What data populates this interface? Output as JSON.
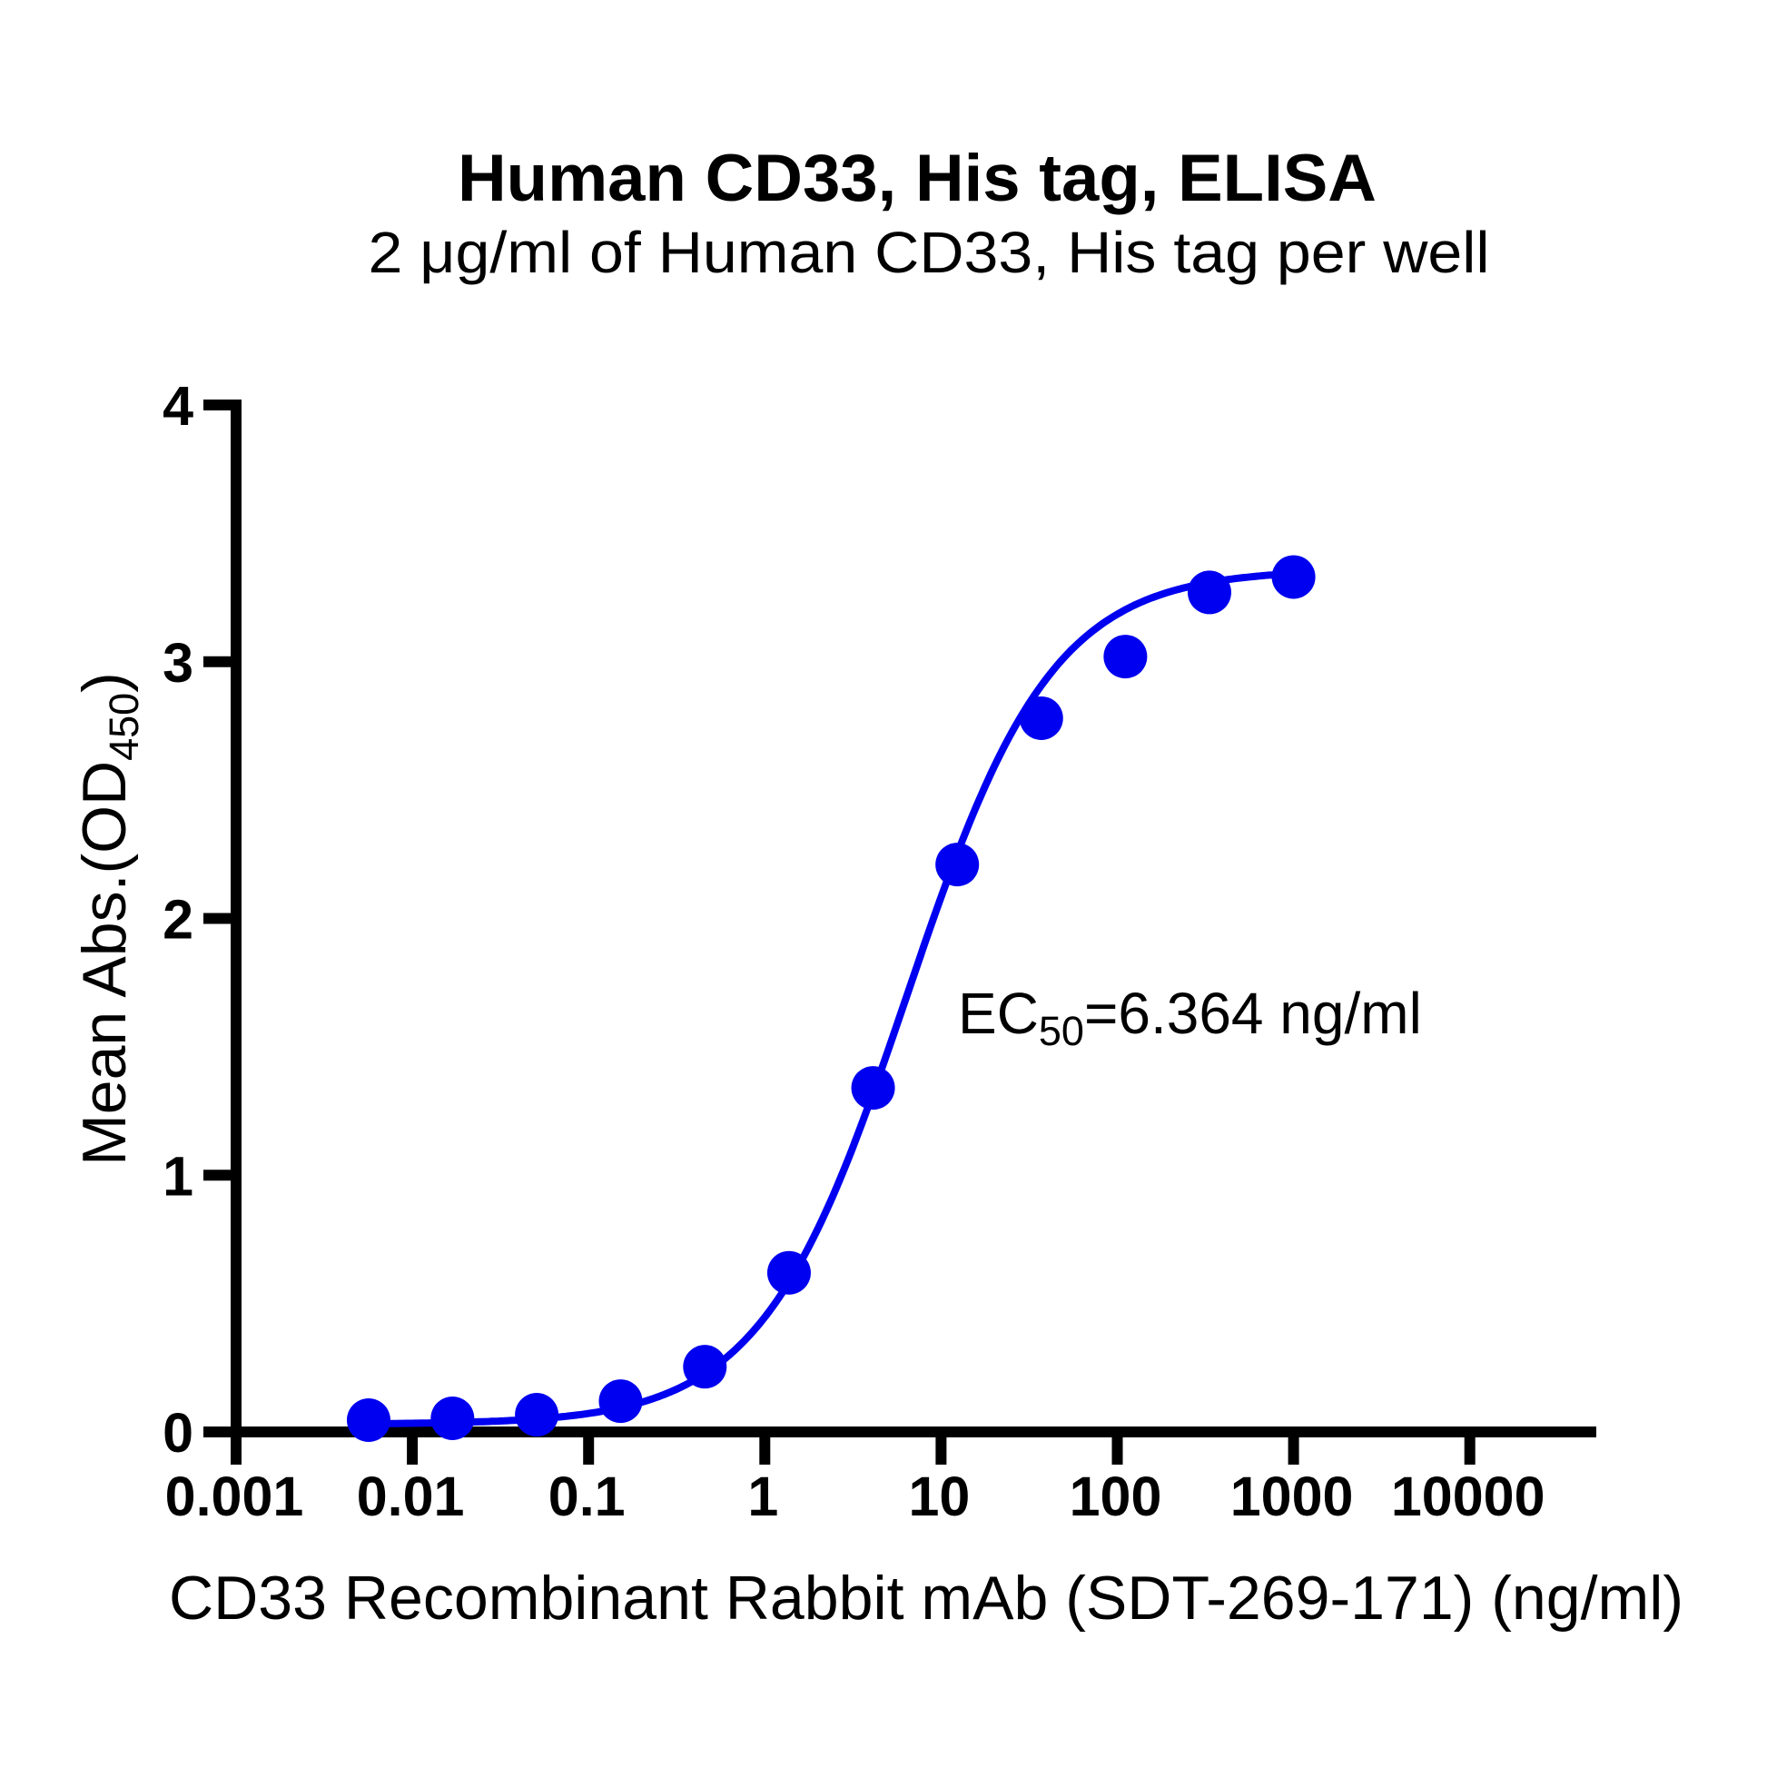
{
  "chart_data": {
    "type": "scatter",
    "title": "Human CD33, His tag, ELISA",
    "subtitle": "2 μg/ml of Human CD33, His tag per well",
    "xlabel": "CD33 Recombinant Rabbit mAb (SDT-269-171) (ng/ml)",
    "ylabel": {
      "main": "Mean Abs.(OD",
      "subscript": "450",
      "close": ")"
    },
    "xscale": "log",
    "xlim": [
      0.001,
      50000
    ],
    "ylim": [
      0,
      4
    ],
    "xticks": [
      "0.001",
      "0.01",
      "0.1",
      "1",
      "10",
      "100",
      "1000",
      "10000"
    ],
    "xtick_values": [
      0.001,
      0.01,
      0.1,
      1,
      10,
      100,
      1000,
      10000
    ],
    "yticks": [
      "0",
      "1",
      "2",
      "3",
      "4"
    ],
    "ytick_values": [
      0,
      1,
      2,
      3,
      4
    ],
    "grid": false,
    "series": [
      {
        "name": "CD33 Recombinant Rabbit mAb (SDT-269-171)",
        "color": "#0000f0",
        "marker": "circle",
        "x": [
          0.00565,
          0.0169,
          0.0508,
          0.152,
          0.457,
          1.372,
          4.115,
          12.35,
          37.04,
          111.1,
          333.3,
          1000
        ],
        "y": [
          0.046,
          0.053,
          0.067,
          0.12,
          0.254,
          0.62,
          1.34,
          2.21,
          2.78,
          3.02,
          3.27,
          3.33
        ]
      }
    ],
    "fit": {
      "model": "4PL",
      "bottom": 0.03,
      "top": 3.36,
      "ec50": 6.364,
      "hill": 1.05,
      "color": "#0000f0"
    },
    "annotation": {
      "prefix": "EC",
      "subscript": "50",
      "suffix": "=6.364 ng/ml"
    }
  }
}
